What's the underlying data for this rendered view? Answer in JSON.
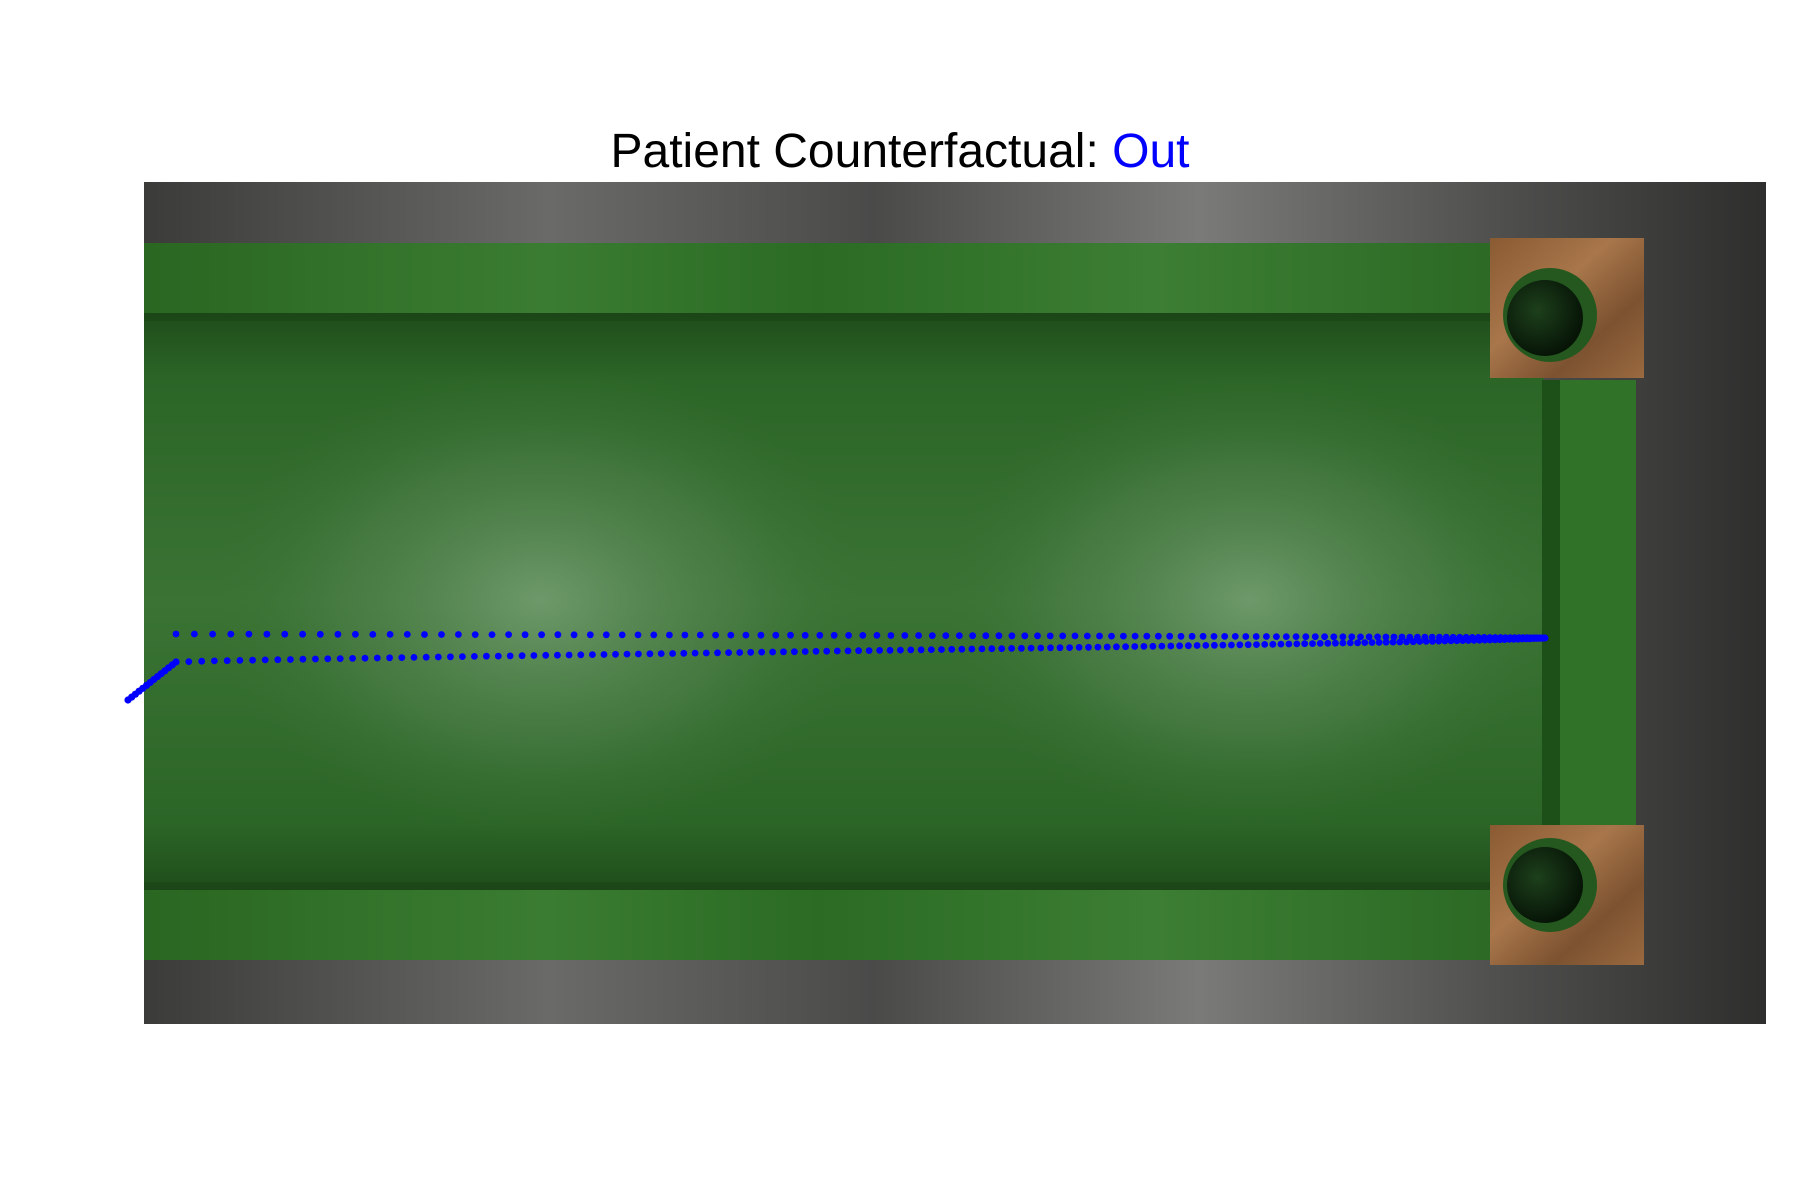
{
  "title": {
    "prefix": "Patient Counterfactual: ",
    "outcome": "Out"
  },
  "colors": {
    "title_text": "#000000",
    "outcome_text": "#0000ff",
    "trajectory": "#0000ff",
    "floor": "#5a5a58",
    "felt": "#2f6e28",
    "felt_light": "#5e8a5c",
    "wood": "#9a6a40",
    "hole": "#0f2a10"
  },
  "scene": {
    "surface": "green felt ramp on grey stone floor",
    "pockets": [
      "top-right pocket",
      "bottom-right pocket"
    ],
    "trajectories": [
      "actual path (upper dotted)",
      "counterfactual path (lower dotted)"
    ]
  }
}
